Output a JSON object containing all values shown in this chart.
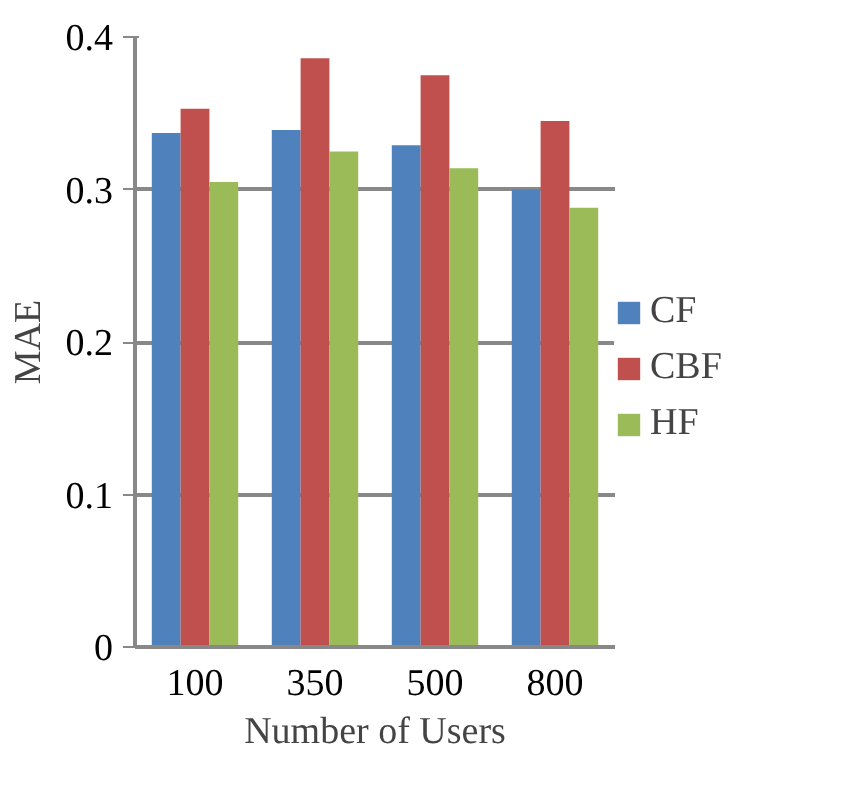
{
  "chart_data": {
    "type": "bar",
    "xlabel": "Number of Users",
    "ylabel": "MAE",
    "categories": [
      "100",
      "350",
      "500",
      "800"
    ],
    "series": [
      {
        "name": "CF",
        "color": "#4f81bd",
        "values": [
          0.337,
          0.339,
          0.329,
          0.3
        ]
      },
      {
        "name": "CBF",
        "color": "#c0504d",
        "values": [
          0.353,
          0.386,
          0.375,
          0.345
        ]
      },
      {
        "name": "HF",
        "color": "#9bbb59",
        "values": [
          0.305,
          0.325,
          0.314,
          0.288
        ]
      }
    ],
    "ylim": [
      0,
      0.4
    ],
    "yticks": [
      0,
      0.1,
      0.2,
      0.3,
      0.4
    ],
    "grid": "y",
    "legend": "right"
  }
}
